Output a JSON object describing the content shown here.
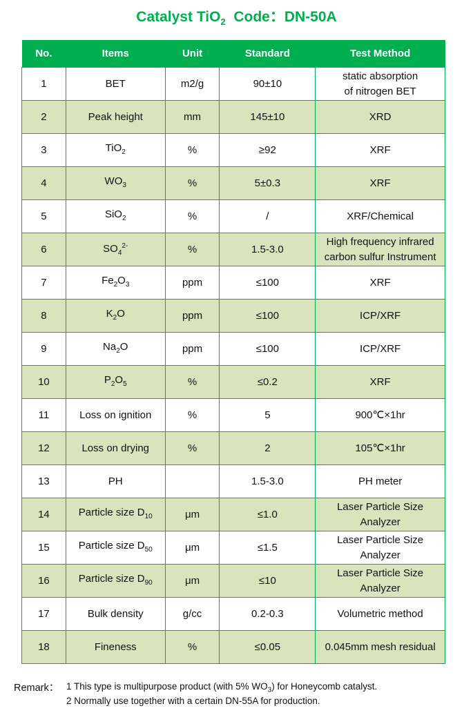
{
  "title": {
    "pre": "Catalyst TiO",
    "sub": "2",
    "post": "  Code：DN-50A"
  },
  "headers": [
    "No.",
    "Items",
    "Unit",
    "Standard",
    "Test Method"
  ],
  "rows": [
    {
      "no": "1",
      "item": [
        {
          "t": "BET"
        }
      ],
      "unit": "m2/g",
      "standard": "90±10",
      "method": [
        "static absorption",
        "of nitrogen BET"
      ]
    },
    {
      "no": "2",
      "item": [
        {
          "t": "Peak height"
        }
      ],
      "unit": "mm",
      "standard": "145±10",
      "method": [
        "XRD"
      ]
    },
    {
      "no": "3",
      "item": [
        {
          "t": "TiO"
        },
        {
          "sub": "2"
        }
      ],
      "unit": "%",
      "standard": "≥92",
      "method": [
        "XRF"
      ]
    },
    {
      "no": "4",
      "item": [
        {
          "t": "WO"
        },
        {
          "sub": "3"
        }
      ],
      "unit": "%",
      "standard": "5±0.3",
      "method": [
        "XRF"
      ]
    },
    {
      "no": "5",
      "item": [
        {
          "t": "SiO"
        },
        {
          "sub": "2"
        }
      ],
      "unit": "%",
      "standard": "/",
      "method": [
        "XRF/Chemical"
      ]
    },
    {
      "no": "6",
      "item": [
        {
          "t": "SO"
        },
        {
          "sub": "4"
        },
        {
          "sup": "2-"
        }
      ],
      "unit": "%",
      "standard": "1.5-3.0",
      "method": [
        "High frequency infrared",
        "carbon sulfur Instrument"
      ]
    },
    {
      "no": "7",
      "item": [
        {
          "t": "Fe"
        },
        {
          "sub": "2"
        },
        {
          "t": "O"
        },
        {
          "sub": "3"
        }
      ],
      "unit": "ppm",
      "standard": "≤100",
      "method": [
        "XRF"
      ]
    },
    {
      "no": "8",
      "item": [
        {
          "t": "K"
        },
        {
          "sub": "2"
        },
        {
          "t": "O"
        }
      ],
      "unit": "ppm",
      "standard": "≤100",
      "method": [
        "ICP/XRF"
      ]
    },
    {
      "no": "9",
      "item": [
        {
          "t": "Na"
        },
        {
          "sub": "2"
        },
        {
          "t": "O"
        }
      ],
      "unit": "ppm",
      "standard": "≤100",
      "method": [
        "ICP/XRF"
      ]
    },
    {
      "no": "10",
      "item": [
        {
          "t": "P"
        },
        {
          "sub": "2"
        },
        {
          "t": "O"
        },
        {
          "sub": "5"
        }
      ],
      "unit": "%",
      "standard": "≤0.2",
      "method": [
        "XRF"
      ]
    },
    {
      "no": "11",
      "item": [
        {
          "t": "Loss on ignition"
        }
      ],
      "unit": "%",
      "standard": "5",
      "method": [
        "900℃×1hr"
      ]
    },
    {
      "no": "12",
      "item": [
        {
          "t": "Loss on drying"
        }
      ],
      "unit": "%",
      "standard": "2",
      "method": [
        "105℃×1hr"
      ]
    },
    {
      "no": "13",
      "item": [
        {
          "t": "PH"
        }
      ],
      "unit": "",
      "standard": "1.5-3.0",
      "method": [
        "PH meter"
      ]
    },
    {
      "no": "14",
      "item": [
        {
          "t": "Particle size D"
        },
        {
          "sub": "10"
        }
      ],
      "unit": "μm",
      "standard": "≤1.0",
      "method": [
        "Laser Particle Size",
        "Analyzer"
      ]
    },
    {
      "no": "15",
      "item": [
        {
          "t": "Particle size D"
        },
        {
          "sub": "50"
        }
      ],
      "unit": "μm",
      "standard": "≤1.5",
      "method": [
        "Laser Particle Size",
        "Analyzer"
      ]
    },
    {
      "no": "16",
      "item": [
        {
          "t": "Particle size D"
        },
        {
          "sub": "90"
        }
      ],
      "unit": "μm",
      "standard": "≤10",
      "method": [
        "Laser Particle Size",
        "Analyzer"
      ]
    },
    {
      "no": "17",
      "item": [
        {
          "t": "Bulk density"
        }
      ],
      "unit": "g/cc",
      "standard": "0.2-0.3",
      "method": [
        "Volumetric method"
      ]
    },
    {
      "no": "18",
      "item": [
        {
          "t": "Fineness"
        }
      ],
      "unit": "%",
      "standard": "≤0.05",
      "method": [
        "0.045mm mesh residual"
      ]
    }
  ],
  "remark": {
    "label": "Remark：",
    "line1": {
      "pre": "1 This type is multipurpose product (with 5% WO",
      "sub": "3",
      "post": ") for Honeycomb catalyst."
    },
    "line2": "2 Normally use together with a certain DN-55A for production."
  },
  "colors": {
    "header": "#00ae50",
    "alt_row": "#d8e4bc",
    "title": "#00ae50"
  }
}
